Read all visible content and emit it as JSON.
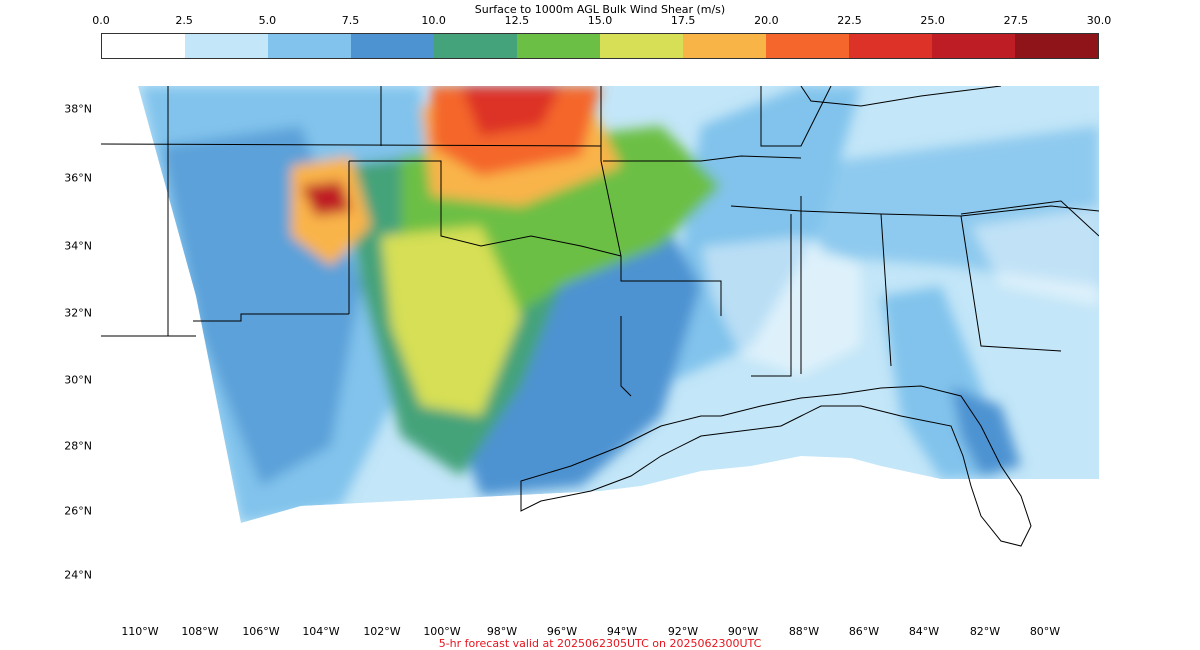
{
  "colorbar": {
    "title": "Surface to 1000m AGL Bulk Wind Shear (m/s)",
    "ticks": [
      "0.0",
      "2.5",
      "5.0",
      "7.5",
      "10.0",
      "12.5",
      "15.0",
      "17.5",
      "20.0",
      "22.5",
      "25.0",
      "27.5",
      "30.0"
    ],
    "colors": [
      "#ffffff",
      "#c3e6f8",
      "#81c3ec",
      "#4d93d1",
      "#44a37a",
      "#6cbf45",
      "#d6df55",
      "#f9b448",
      "#f4662c",
      "#dd3227",
      "#bf1d25",
      "#8f1419"
    ]
  },
  "axes": {
    "lat_labels": [
      "38°N",
      "36°N",
      "34°N",
      "32°N",
      "30°N",
      "28°N",
      "26°N",
      "24°N"
    ],
    "lon_labels": [
      "110°W",
      "108°W",
      "106°W",
      "104°W",
      "102°W",
      "100°W",
      "98°W",
      "96°W",
      "94°W",
      "92°W",
      "90°W",
      "88°W",
      "86°W",
      "84°W",
      "82°W",
      "80°W"
    ]
  },
  "caption": "5-hr forecast valid at 2025062305UTC on 2025062300UTC"
}
